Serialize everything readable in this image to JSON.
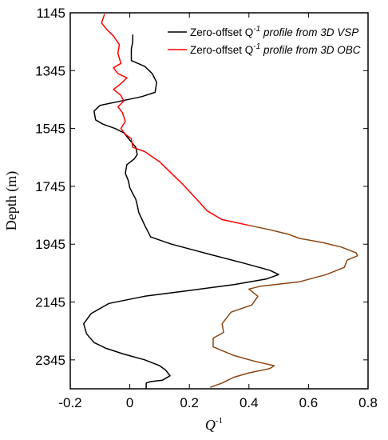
{
  "chart_data": {
    "type": "line",
    "title": "",
    "xlabel": "Q",
    "xlabel_superscript": "-1",
    "ylabel": "Depth (m)",
    "xlim": [
      -0.2,
      0.8
    ],
    "ylim": [
      1145,
      2445
    ],
    "y_inverted": true,
    "grid": false,
    "legend_position": "top-right",
    "x_ticks": [
      "-0.2",
      "0",
      "0.2",
      "0.4",
      "0.6",
      "0.8"
    ],
    "y_ticks": [
      "1145",
      "1345",
      "1545",
      "1745",
      "1945",
      "2145",
      "2345"
    ],
    "series": [
      {
        "name": "Zero-offset Q^-1 profile from 3D VSP",
        "legend_prefix": "Zero-offset Q",
        "legend_sup": "-1",
        "legend_suffix": " profile from 3D VSP",
        "color": "#000000",
        "points": [
          [
            0.01,
            1220
          ],
          [
            0.01,
            1245
          ],
          [
            0.005,
            1270
          ],
          [
            0.005,
            1310
          ],
          [
            0.05,
            1330
          ],
          [
            0.075,
            1355
          ],
          [
            0.09,
            1385
          ],
          [
            0.085,
            1420
          ],
          [
            0.04,
            1435
          ],
          [
            -0.03,
            1450
          ],
          [
            -0.1,
            1465
          ],
          [
            -0.12,
            1485
          ],
          [
            -0.115,
            1515
          ],
          [
            -0.09,
            1530
          ],
          [
            -0.05,
            1545
          ],
          [
            -0.02,
            1560
          ],
          [
            0.0,
            1585
          ],
          [
            0.02,
            1610
          ],
          [
            0.025,
            1635
          ],
          [
            0.015,
            1650
          ],
          [
            -0.01,
            1670
          ],
          [
            -0.015,
            1700
          ],
          [
            -0.005,
            1725
          ],
          [
            0.0,
            1750
          ],
          [
            0.01,
            1770
          ],
          [
            0.02,
            1790
          ],
          [
            0.025,
            1810
          ],
          [
            0.03,
            1835
          ],
          [
            0.05,
            1880
          ],
          [
            0.07,
            1920
          ],
          [
            0.14,
            1945
          ],
          [
            0.25,
            1975
          ],
          [
            0.38,
            2010
          ],
          [
            0.47,
            2035
          ],
          [
            0.5,
            2050
          ],
          [
            0.46,
            2065
          ],
          [
            0.35,
            2085
          ],
          [
            0.2,
            2105
          ],
          [
            0.05,
            2125
          ],
          [
            -0.07,
            2150
          ],
          [
            -0.13,
            2185
          ],
          [
            -0.155,
            2220
          ],
          [
            -0.145,
            2255
          ],
          [
            -0.12,
            2285
          ],
          [
            -0.08,
            2305
          ],
          [
            -0.02,
            2325
          ],
          [
            0.05,
            2345
          ],
          [
            0.1,
            2365
          ],
          [
            0.12,
            2380
          ],
          [
            0.135,
            2400
          ],
          [
            0.11,
            2415
          ],
          [
            0.07,
            2420
          ],
          [
            0.055,
            2425
          ],
          [
            0.055,
            2445
          ]
        ]
      },
      {
        "name": "Zero-offset Q^-1 profile from 3D OBC",
        "legend_prefix": "Zero-offset Q",
        "legend_sup": "-1",
        "legend_suffix": " profile from 3D OBC",
        "color": "#ff0000",
        "color_lower": "#8b4513",
        "color_split_depth": 1880,
        "points": [
          [
            -0.085,
            1150
          ],
          [
            -0.095,
            1180
          ],
          [
            -0.075,
            1205
          ],
          [
            -0.055,
            1225
          ],
          [
            -0.035,
            1255
          ],
          [
            -0.04,
            1285
          ],
          [
            -0.03,
            1320
          ],
          [
            -0.055,
            1335
          ],
          [
            -0.04,
            1355
          ],
          [
            -0.01,
            1370
          ],
          [
            -0.03,
            1390
          ],
          [
            -0.055,
            1410
          ],
          [
            -0.03,
            1430
          ],
          [
            -0.02,
            1450
          ],
          [
            -0.04,
            1470
          ],
          [
            -0.025,
            1490
          ],
          [
            -0.015,
            1520
          ],
          [
            -0.03,
            1545
          ],
          [
            -0.015,
            1565
          ],
          [
            0.005,
            1580
          ],
          [
            0.01,
            1610
          ],
          [
            0.05,
            1625
          ],
          [
            0.1,
            1660
          ],
          [
            0.14,
            1700
          ],
          [
            0.18,
            1740
          ],
          [
            0.225,
            1790
          ],
          [
            0.26,
            1830
          ],
          [
            0.31,
            1860
          ],
          [
            0.4,
            1880
          ],
          [
            0.47,
            1895
          ],
          [
            0.53,
            1910
          ],
          [
            0.57,
            1925
          ],
          [
            0.65,
            1940
          ],
          [
            0.71,
            1955
          ],
          [
            0.76,
            1975
          ],
          [
            0.765,
            1985
          ],
          [
            0.73,
            2000
          ],
          [
            0.72,
            2025
          ],
          [
            0.66,
            2050
          ],
          [
            0.57,
            2075
          ],
          [
            0.44,
            2090
          ],
          [
            0.4,
            2100
          ],
          [
            0.43,
            2125
          ],
          [
            0.41,
            2155
          ],
          [
            0.34,
            2180
          ],
          [
            0.31,
            2220
          ],
          [
            0.315,
            2250
          ],
          [
            0.28,
            2270
          ],
          [
            0.28,
            2300
          ],
          [
            0.35,
            2330
          ],
          [
            0.42,
            2350
          ],
          [
            0.485,
            2365
          ],
          [
            0.47,
            2375
          ],
          [
            0.4,
            2390
          ],
          [
            0.35,
            2405
          ],
          [
            0.31,
            2425
          ],
          [
            0.27,
            2440
          ]
        ]
      }
    ]
  }
}
